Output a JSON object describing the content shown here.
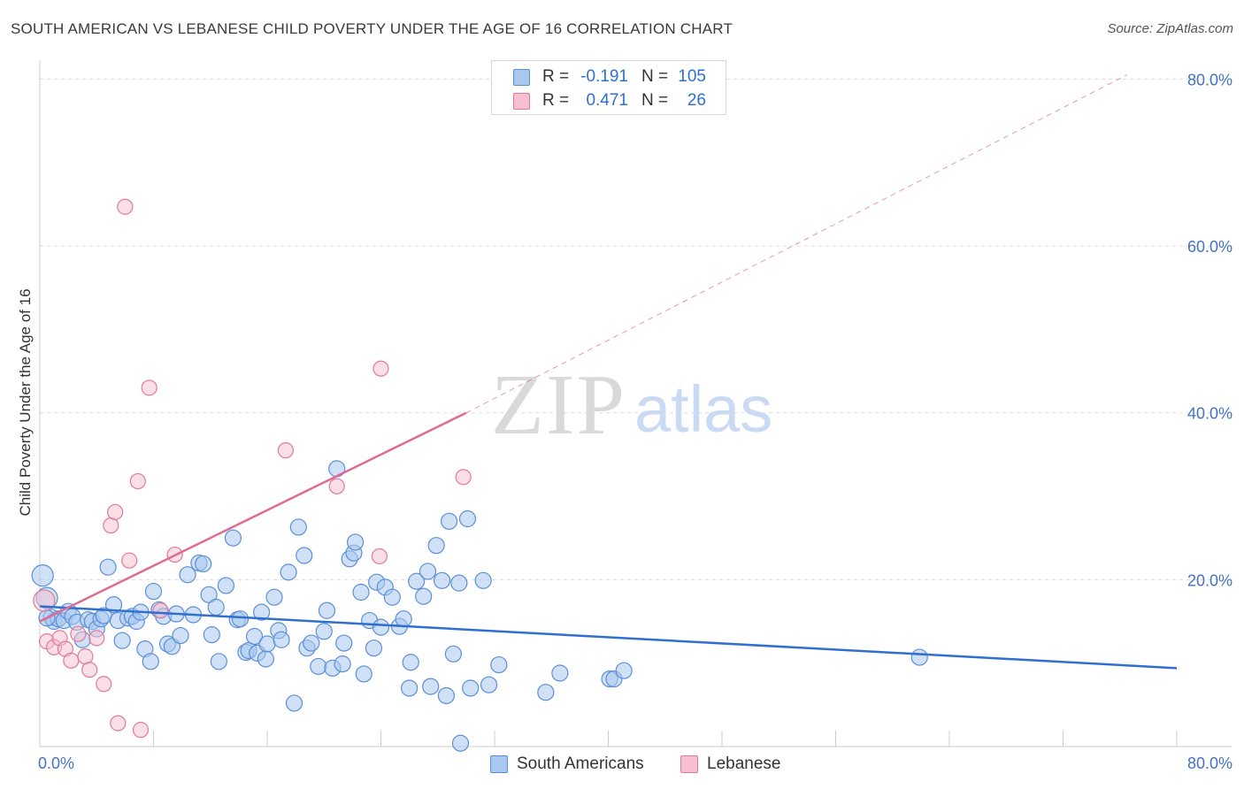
{
  "title": "SOUTH AMERICAN VS LEBANESE CHILD POVERTY UNDER THE AGE OF 16 CORRELATION CHART",
  "source": "Source: ZipAtlas.com",
  "watermark": {
    "zip": "ZIP",
    "atlas": "atlas"
  },
  "legend_top": {
    "rows": [
      {
        "r_label": "R =",
        "r_value": "-0.191",
        "n_label": "N =",
        "n_value": "105",
        "color": "#a9c8f0",
        "border": "#5b8fd6"
      },
      {
        "r_label": "R =",
        "r_value": "0.471",
        "n_label": "N =",
        "n_value": "26",
        "color": "#f7bfd0",
        "border": "#e07a9a"
      }
    ]
  },
  "legend_bottom": [
    {
      "label": "South Americans",
      "color": "#a9c8f0",
      "border": "#5b8fd6"
    },
    {
      "label": "Lebanese",
      "color": "#f7bfd0",
      "border": "#e07a9a"
    }
  ],
  "chart_data": {
    "type": "scatter",
    "title": "SOUTH AMERICAN VS LEBANESE CHILD POVERTY UNDER THE AGE OF 16 CORRELATION CHART",
    "xlabel": "",
    "ylabel": "Child Poverty Under the Age of 16",
    "xlim": [
      0,
      80
    ],
    "ylim": [
      0,
      81
    ],
    "x_tick_labels": [
      "0.0%",
      "80.0%"
    ],
    "y_ticks": [
      20,
      40,
      60,
      80
    ],
    "y_tick_labels": [
      "20.0%",
      "40.0%",
      "60.0%",
      "80.0%"
    ],
    "grid": true,
    "colors": {
      "south_americans": "#5b8fd6",
      "south_americans_fill": "#a9c8f0",
      "lebanese": "#e07a9a",
      "lebanese_fill": "#f7bfd0",
      "blue_line": "#2f6fd0",
      "pink_line": "#e06a93"
    },
    "series": [
      {
        "name": "South Americans",
        "points": [
          [
            0.2,
            20.5
          ],
          [
            0.5,
            17.8
          ],
          [
            0.8,
            15.5
          ],
          [
            1.0,
            15.0
          ],
          [
            1.3,
            15.3
          ],
          [
            1.7,
            15.1
          ],
          [
            2.0,
            16.2
          ],
          [
            2.3,
            15.6
          ],
          [
            2.6,
            14.9
          ],
          [
            3.0,
            12.8
          ],
          [
            3.4,
            15.2
          ],
          [
            3.7,
            15.0
          ],
          [
            4.0,
            14.1
          ],
          [
            4.3,
            15.3
          ],
          [
            4.5,
            15.7
          ],
          [
            4.8,
            21.5
          ],
          [
            5.2,
            17.0
          ],
          [
            5.5,
            15.1
          ],
          [
            5.8,
            12.7
          ],
          [
            6.2,
            15.4
          ],
          [
            6.5,
            15.6
          ],
          [
            6.8,
            15.0
          ],
          [
            7.1,
            16.1
          ],
          [
            7.4,
            11.7
          ],
          [
            7.8,
            10.2
          ],
          [
            8.0,
            18.6
          ],
          [
            8.4,
            16.4
          ],
          [
            8.7,
            15.6
          ],
          [
            9.0,
            12.3
          ],
          [
            9.3,
            12.0
          ],
          [
            9.6,
            15.9
          ],
          [
            9.9,
            13.3
          ],
          [
            10.4,
            20.6
          ],
          [
            10.8,
            15.8
          ],
          [
            11.2,
            22.0
          ],
          [
            11.5,
            21.9
          ],
          [
            11.9,
            18.2
          ],
          [
            12.1,
            13.4
          ],
          [
            12.4,
            16.7
          ],
          [
            12.6,
            10.2
          ],
          [
            13.1,
            19.3
          ],
          [
            13.6,
            25.0
          ],
          [
            13.9,
            15.2
          ],
          [
            14.1,
            15.3
          ],
          [
            14.5,
            11.3
          ],
          [
            14.7,
            11.5
          ],
          [
            15.1,
            13.2
          ],
          [
            15.3,
            11.2
          ],
          [
            15.6,
            16.1
          ],
          [
            15.9,
            10.5
          ],
          [
            16.0,
            12.3
          ],
          [
            16.5,
            17.9
          ],
          [
            16.8,
            13.9
          ],
          [
            17.0,
            12.8
          ],
          [
            17.5,
            20.9
          ],
          [
            17.9,
            5.2
          ],
          [
            18.2,
            26.3
          ],
          [
            18.6,
            22.9
          ],
          [
            18.8,
            11.8
          ],
          [
            19.1,
            12.4
          ],
          [
            19.6,
            9.6
          ],
          [
            20.0,
            13.8
          ],
          [
            20.2,
            16.3
          ],
          [
            20.6,
            9.4
          ],
          [
            20.9,
            33.3
          ],
          [
            21.3,
            9.9
          ],
          [
            21.4,
            12.4
          ],
          [
            21.8,
            22.5
          ],
          [
            22.1,
            23.2
          ],
          [
            22.2,
            24.5
          ],
          [
            22.6,
            18.5
          ],
          [
            22.8,
            8.7
          ],
          [
            23.2,
            15.1
          ],
          [
            23.5,
            11.8
          ],
          [
            23.7,
            19.7
          ],
          [
            24.0,
            14.3
          ],
          [
            24.3,
            19.1
          ],
          [
            24.8,
            17.9
          ],
          [
            25.3,
            14.4
          ],
          [
            25.6,
            15.3
          ],
          [
            26.0,
            7.0
          ],
          [
            26.1,
            10.1
          ],
          [
            26.5,
            19.8
          ],
          [
            27.0,
            18.0
          ],
          [
            27.3,
            21.0
          ],
          [
            27.5,
            7.2
          ],
          [
            27.9,
            24.1
          ],
          [
            28.3,
            19.9
          ],
          [
            28.6,
            6.1
          ],
          [
            28.8,
            27.0
          ],
          [
            29.1,
            11.1
          ],
          [
            29.5,
            19.6
          ],
          [
            29.6,
            0.4
          ],
          [
            30.1,
            27.3
          ],
          [
            30.3,
            7.0
          ],
          [
            31.2,
            19.9
          ],
          [
            31.6,
            7.4
          ],
          [
            32.3,
            9.8
          ],
          [
            35.6,
            6.5
          ],
          [
            36.6,
            8.8
          ],
          [
            40.1,
            8.1
          ],
          [
            40.4,
            8.1
          ],
          [
            41.1,
            9.1
          ],
          [
            61.9,
            10.7
          ],
          [
            0.5,
            15.4
          ]
        ]
      },
      {
        "name": "Lebanese",
        "points": [
          [
            0.3,
            17.5
          ],
          [
            0.5,
            12.6
          ],
          [
            1.0,
            11.9
          ],
          [
            1.4,
            13.0
          ],
          [
            1.8,
            11.7
          ],
          [
            2.2,
            10.3
          ],
          [
            2.7,
            13.5
          ],
          [
            3.2,
            10.8
          ],
          [
            3.5,
            9.2
          ],
          [
            4.0,
            13.0
          ],
          [
            4.5,
            7.5
          ],
          [
            5.0,
            26.5
          ],
          [
            5.3,
            28.1
          ],
          [
            5.5,
            2.8
          ],
          [
            6.0,
            64.7
          ],
          [
            6.3,
            22.3
          ],
          [
            6.9,
            31.8
          ],
          [
            7.1,
            2.0
          ],
          [
            7.7,
            43.0
          ],
          [
            8.5,
            16.3
          ],
          [
            9.5,
            23.0
          ],
          [
            17.3,
            35.5
          ],
          [
            20.9,
            31.2
          ],
          [
            23.9,
            22.8
          ],
          [
            24.0,
            45.3
          ],
          [
            29.8,
            32.3
          ]
        ]
      }
    ],
    "trend_lines": [
      {
        "series": "South Americans",
        "x": [
          0,
          80
        ],
        "y": [
          16.8,
          9.4
        ],
        "style": "solid"
      },
      {
        "series": "Lebanese",
        "x": [
          0,
          30
        ],
        "y": [
          15.0,
          40.0
        ],
        "style": "solid"
      },
      {
        "series": "Lebanese",
        "x": [
          30,
          76.5
        ],
        "y": [
          40.0,
          80.5
        ],
        "style": "dashed"
      }
    ]
  }
}
